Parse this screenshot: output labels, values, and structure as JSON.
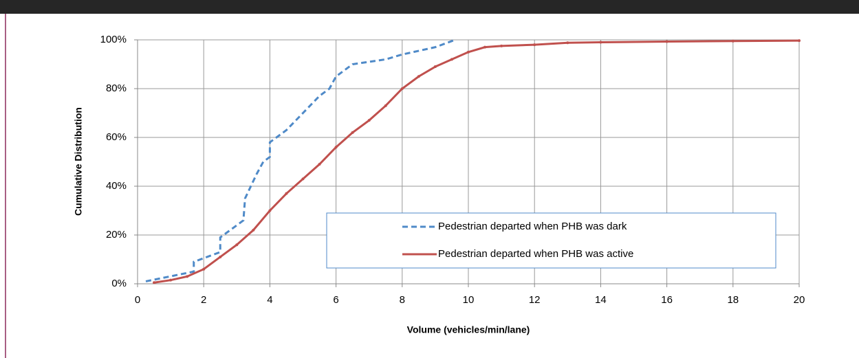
{
  "chart_data": {
    "type": "line",
    "xlabel": "Volume (vehicles/min/lane)",
    "ylabel": "Cumulative Distribution",
    "xlim": [
      0,
      20
    ],
    "xticks": [
      0,
      2,
      4,
      6,
      8,
      10,
      12,
      14,
      16,
      18,
      20
    ],
    "ylim": [
      0,
      100
    ],
    "yticks": [
      {
        "value": 0,
        "label": "0%"
      },
      {
        "value": 20,
        "label": "20%"
      },
      {
        "value": 40,
        "label": "40%"
      },
      {
        "value": 60,
        "label": "60%"
      },
      {
        "value": 80,
        "label": "80%"
      },
      {
        "value": 100,
        "label": "100%"
      }
    ],
    "grid": true,
    "legend": "lower right",
    "series": [
      {
        "name": "Pedestrian departed when PHB was dark",
        "color": "#4f8ac8",
        "dashed": true,
        "x": [
          0.25,
          1.7,
          1.7,
          2.5,
          2.5,
          3.2,
          3.25,
          3.6,
          3.8,
          4.0,
          4.0,
          4.5,
          5.0,
          5.5,
          5.8,
          6.0,
          6.5,
          7.5,
          8.0,
          9.0,
          9.6
        ],
        "values": [
          1,
          5,
          9,
          13,
          19,
          26,
          35,
          45,
          50,
          52,
          58,
          63,
          70,
          77,
          80,
          85,
          90,
          92,
          94,
          97,
          100
        ]
      },
      {
        "name": "Pedestrian departed when PHB was active",
        "color": "#c0504d",
        "dashed": false,
        "x": [
          0.5,
          1,
          1.5,
          2,
          2.5,
          3,
          3.5,
          4,
          4.5,
          5,
          5.5,
          6,
          6.5,
          7,
          7.5,
          8,
          8.5,
          9,
          9.5,
          10,
          10.5,
          11,
          12,
          13,
          14,
          16,
          18,
          20
        ],
        "values": [
          0.5,
          1.5,
          3,
          6,
          11,
          16,
          22,
          30,
          37,
          43,
          49,
          56,
          62,
          67,
          73,
          80,
          85,
          89,
          92,
          95,
          97,
          97.5,
          98,
          98.8,
          99,
          99.3,
          99.5,
          99.7
        ]
      }
    ]
  }
}
